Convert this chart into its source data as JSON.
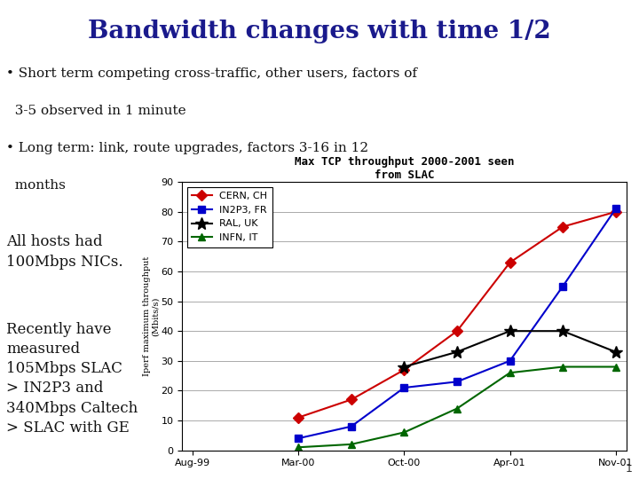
{
  "title": "Bandwidth changes with time 1/2",
  "title_color": "#1a1a8c",
  "title_bg": "#b0ccd8",
  "background_color": "#ffffff",
  "bullet1_line1": "• Short term competing cross-traffic, other users, factors of",
  "bullet1_line2": "  3-5 observed in 1 minute",
  "bullet2_line1": "• Long term: link, route upgrades, factors 3-16 in 12",
  "bullet2_line2": "  months",
  "left_text1": "All hosts had\n100Mbps NICs.",
  "left_text2": "Recently have\nmeasured\n105Mbps SLAC\n> IN2P3 and\n340Mbps Caltech\n> SLAC with GE",
  "chart_title": "Max TCP throughput 2000-2001 seen\nfrom SLAC",
  "ylabel": "Iperf maximum throughput\n(Mbits/s)",
  "xlabel_ticks": [
    "Aug-99",
    "Mar-00",
    "Oct-00",
    "Apr-01",
    "Nov-01"
  ],
  "x_values": [
    0,
    1,
    2,
    3,
    4
  ],
  "ylim": [
    0,
    90
  ],
  "yticks": [
    0,
    10,
    20,
    30,
    40,
    50,
    60,
    70,
    80,
    90
  ],
  "series": [
    {
      "label": "CERN, CH",
      "color": "#cc0000",
      "marker": "D",
      "markersize": 6,
      "x": [
        1,
        1.5,
        2,
        2.5,
        3,
        3.5,
        4
      ],
      "y": [
        11,
        17,
        27,
        40,
        63,
        75,
        80
      ]
    },
    {
      "label": "IN2P3, FR",
      "color": "#0000cc",
      "marker": "s",
      "markersize": 6,
      "x": [
        1,
        1.5,
        2,
        2.5,
        3,
        3.5,
        4
      ],
      "y": [
        4,
        8,
        21,
        23,
        30,
        55,
        81
      ]
    },
    {
      "label": "RAL, UK",
      "color": "#000000",
      "marker": "*",
      "markersize": 10,
      "x": [
        2,
        2.5,
        3,
        3.5,
        4
      ],
      "y": [
        28,
        33,
        40,
        40,
        33
      ]
    },
    {
      "label": "INFN, IT",
      "color": "#006600",
      "marker": "^",
      "markersize": 6,
      "x": [
        1,
        1.5,
        2,
        2.5,
        3,
        3.5,
        4
      ],
      "y": [
        1,
        2,
        6,
        14,
        26,
        28,
        28
      ]
    }
  ]
}
